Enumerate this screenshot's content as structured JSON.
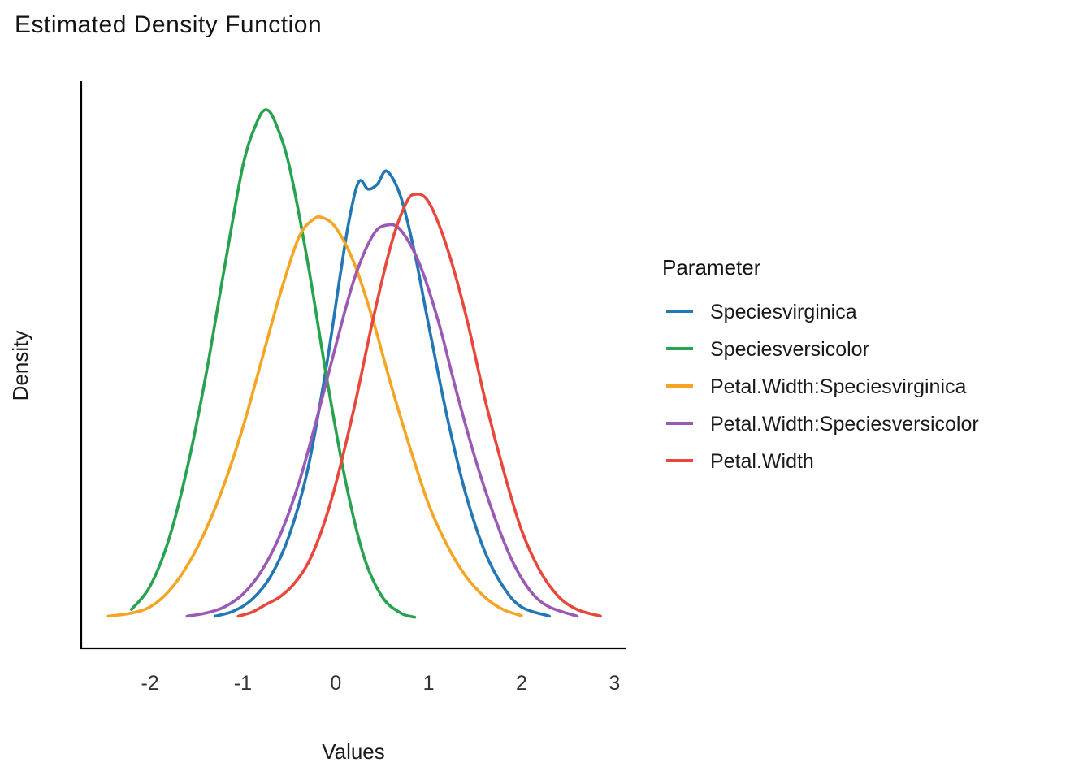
{
  "chart_data": {
    "type": "line",
    "title": "Estimated Density Function",
    "xlabel": "Values",
    "ylabel": "Density",
    "legend_title": "Parameter",
    "legend_position": "right",
    "grid": false,
    "xlim": [
      -2.74,
      3.12
    ],
    "ylim": [
      0,
      1.08
    ],
    "x_ticks": [
      -2,
      -1,
      0,
      1,
      2,
      3
    ],
    "series": [
      {
        "name": "Speciesvirginica",
        "color": "#2277b4",
        "x": [
          -1.3,
          -1.1,
          -0.9,
          -0.7,
          -0.5,
          -0.3,
          -0.1,
          0.05,
          0.15,
          0.25,
          0.35,
          0.45,
          0.55,
          0.7,
          0.85,
          1.0,
          1.2,
          1.4,
          1.6,
          1.8,
          2.0,
          2.3
        ],
        "y": [
          0.012,
          0.022,
          0.045,
          0.09,
          0.17,
          0.3,
          0.5,
          0.68,
          0.79,
          0.86,
          0.845,
          0.855,
          0.88,
          0.83,
          0.72,
          0.58,
          0.4,
          0.25,
          0.14,
          0.07,
          0.03,
          0.012
        ]
      },
      {
        "name": "Speciesversicolor",
        "color": "#27a350",
        "x": [
          -2.2,
          -2.0,
          -1.8,
          -1.6,
          -1.4,
          -1.2,
          -1.0,
          -0.85,
          -0.75,
          -0.65,
          -0.5,
          -0.3,
          -0.1,
          0.1,
          0.3,
          0.5,
          0.7,
          0.85
        ],
        "y": [
          0.025,
          0.07,
          0.16,
          0.3,
          0.48,
          0.69,
          0.89,
          0.975,
          1.0,
          0.975,
          0.89,
          0.7,
          0.48,
          0.28,
          0.13,
          0.05,
          0.018,
          0.01
        ]
      },
      {
        "name": "Petal.Width:Speciesvirginica",
        "color": "#f5a423",
        "x": [
          -2.45,
          -2.2,
          -2.0,
          -1.8,
          -1.6,
          -1.4,
          -1.2,
          -1.0,
          -0.8,
          -0.6,
          -0.4,
          -0.25,
          -0.15,
          0.0,
          0.2,
          0.4,
          0.6,
          0.8,
          1.0,
          1.2,
          1.4,
          1.6,
          1.8,
          2.0
        ],
        "y": [
          0.012,
          0.018,
          0.03,
          0.06,
          0.11,
          0.18,
          0.27,
          0.38,
          0.51,
          0.64,
          0.75,
          0.785,
          0.79,
          0.77,
          0.7,
          0.59,
          0.46,
          0.34,
          0.23,
          0.15,
          0.09,
          0.05,
          0.025,
          0.013
        ]
      },
      {
        "name": "Petal.Width:Speciesversicolor",
        "color": "#9b59b6",
        "x": [
          -1.6,
          -1.4,
          -1.2,
          -1.0,
          -0.8,
          -0.6,
          -0.4,
          -0.2,
          0.0,
          0.2,
          0.4,
          0.55,
          0.7,
          0.9,
          1.1,
          1.3,
          1.5,
          1.7,
          1.9,
          2.1,
          2.3,
          2.6
        ],
        "y": [
          0.012,
          0.018,
          0.03,
          0.055,
          0.1,
          0.17,
          0.27,
          0.4,
          0.54,
          0.67,
          0.755,
          0.775,
          0.765,
          0.7,
          0.59,
          0.45,
          0.32,
          0.21,
          0.12,
          0.06,
          0.03,
          0.012
        ]
      },
      {
        "name": "Petal.Width",
        "color": "#e8483c",
        "x": [
          -1.05,
          -0.9,
          -0.75,
          -0.6,
          -0.45,
          -0.3,
          -0.15,
          0.0,
          0.2,
          0.4,
          0.6,
          0.75,
          0.85,
          1.0,
          1.2,
          1.4,
          1.6,
          1.8,
          2.0,
          2.2,
          2.4,
          2.6,
          2.85
        ],
        "y": [
          0.012,
          0.02,
          0.035,
          0.05,
          0.075,
          0.115,
          0.18,
          0.27,
          0.42,
          0.59,
          0.74,
          0.815,
          0.835,
          0.82,
          0.73,
          0.6,
          0.44,
          0.3,
          0.18,
          0.1,
          0.05,
          0.025,
          0.012
        ]
      }
    ]
  }
}
